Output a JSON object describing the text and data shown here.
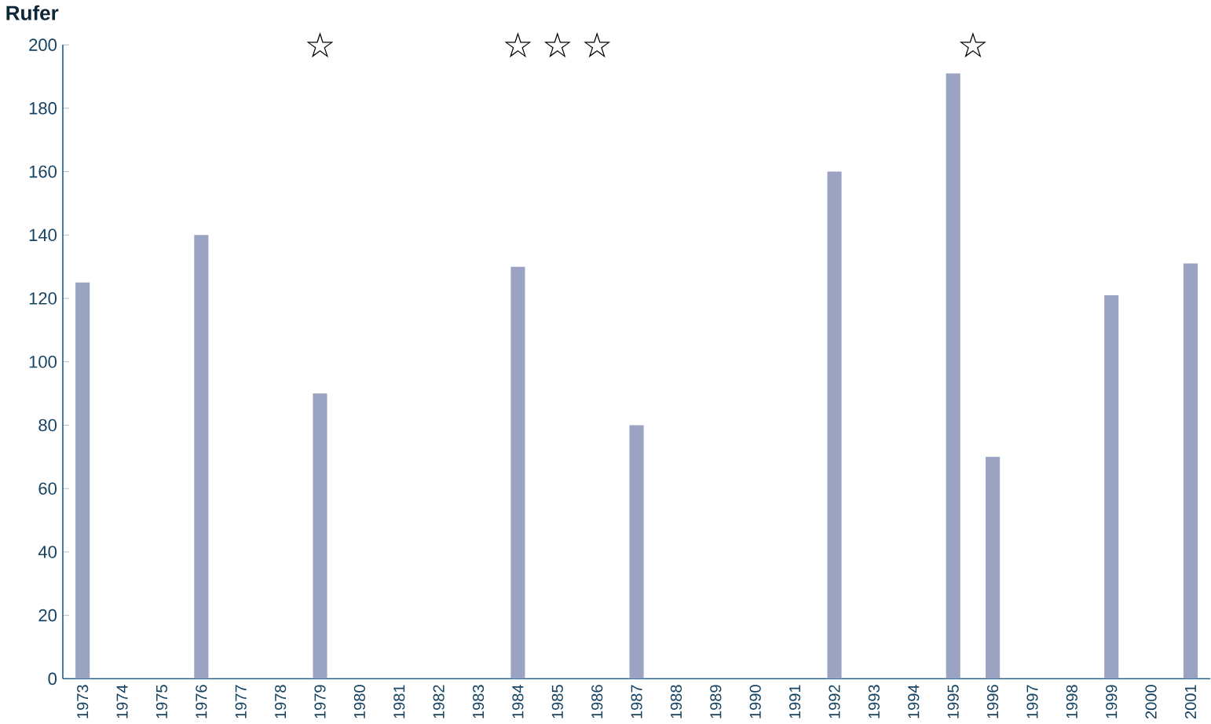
{
  "chart_data": {
    "type": "bar",
    "ylabel": "Rufer",
    "categories": [
      "1973",
      "1974",
      "1975",
      "1976",
      "1977",
      "1978",
      "1979",
      "1980",
      "1981",
      "1982",
      "1983",
      "1984",
      "1985",
      "1986",
      "1987",
      "1988",
      "1989",
      "1990",
      "1991",
      "1992",
      "1993",
      "1994",
      "1995",
      "1996",
      "1997",
      "1998",
      "1999",
      "2000",
      "2001"
    ],
    "values": [
      125,
      0,
      0,
      140,
      0,
      0,
      90,
      0,
      0,
      0,
      0,
      130,
      0,
      0,
      80,
      0,
      0,
      0,
      0,
      160,
      0,
      0,
      191,
      70,
      0,
      0,
      121,
      0,
      131
    ],
    "color": "#9aa3c2",
    "ylim": [
      0,
      200
    ],
    "yticks": [
      0,
      20,
      40,
      60,
      80,
      100,
      120,
      140,
      160,
      180,
      200
    ],
    "grid": false,
    "annotations": [
      "☆",
      "☆",
      "☆",
      "☆",
      "☆"
    ]
  }
}
